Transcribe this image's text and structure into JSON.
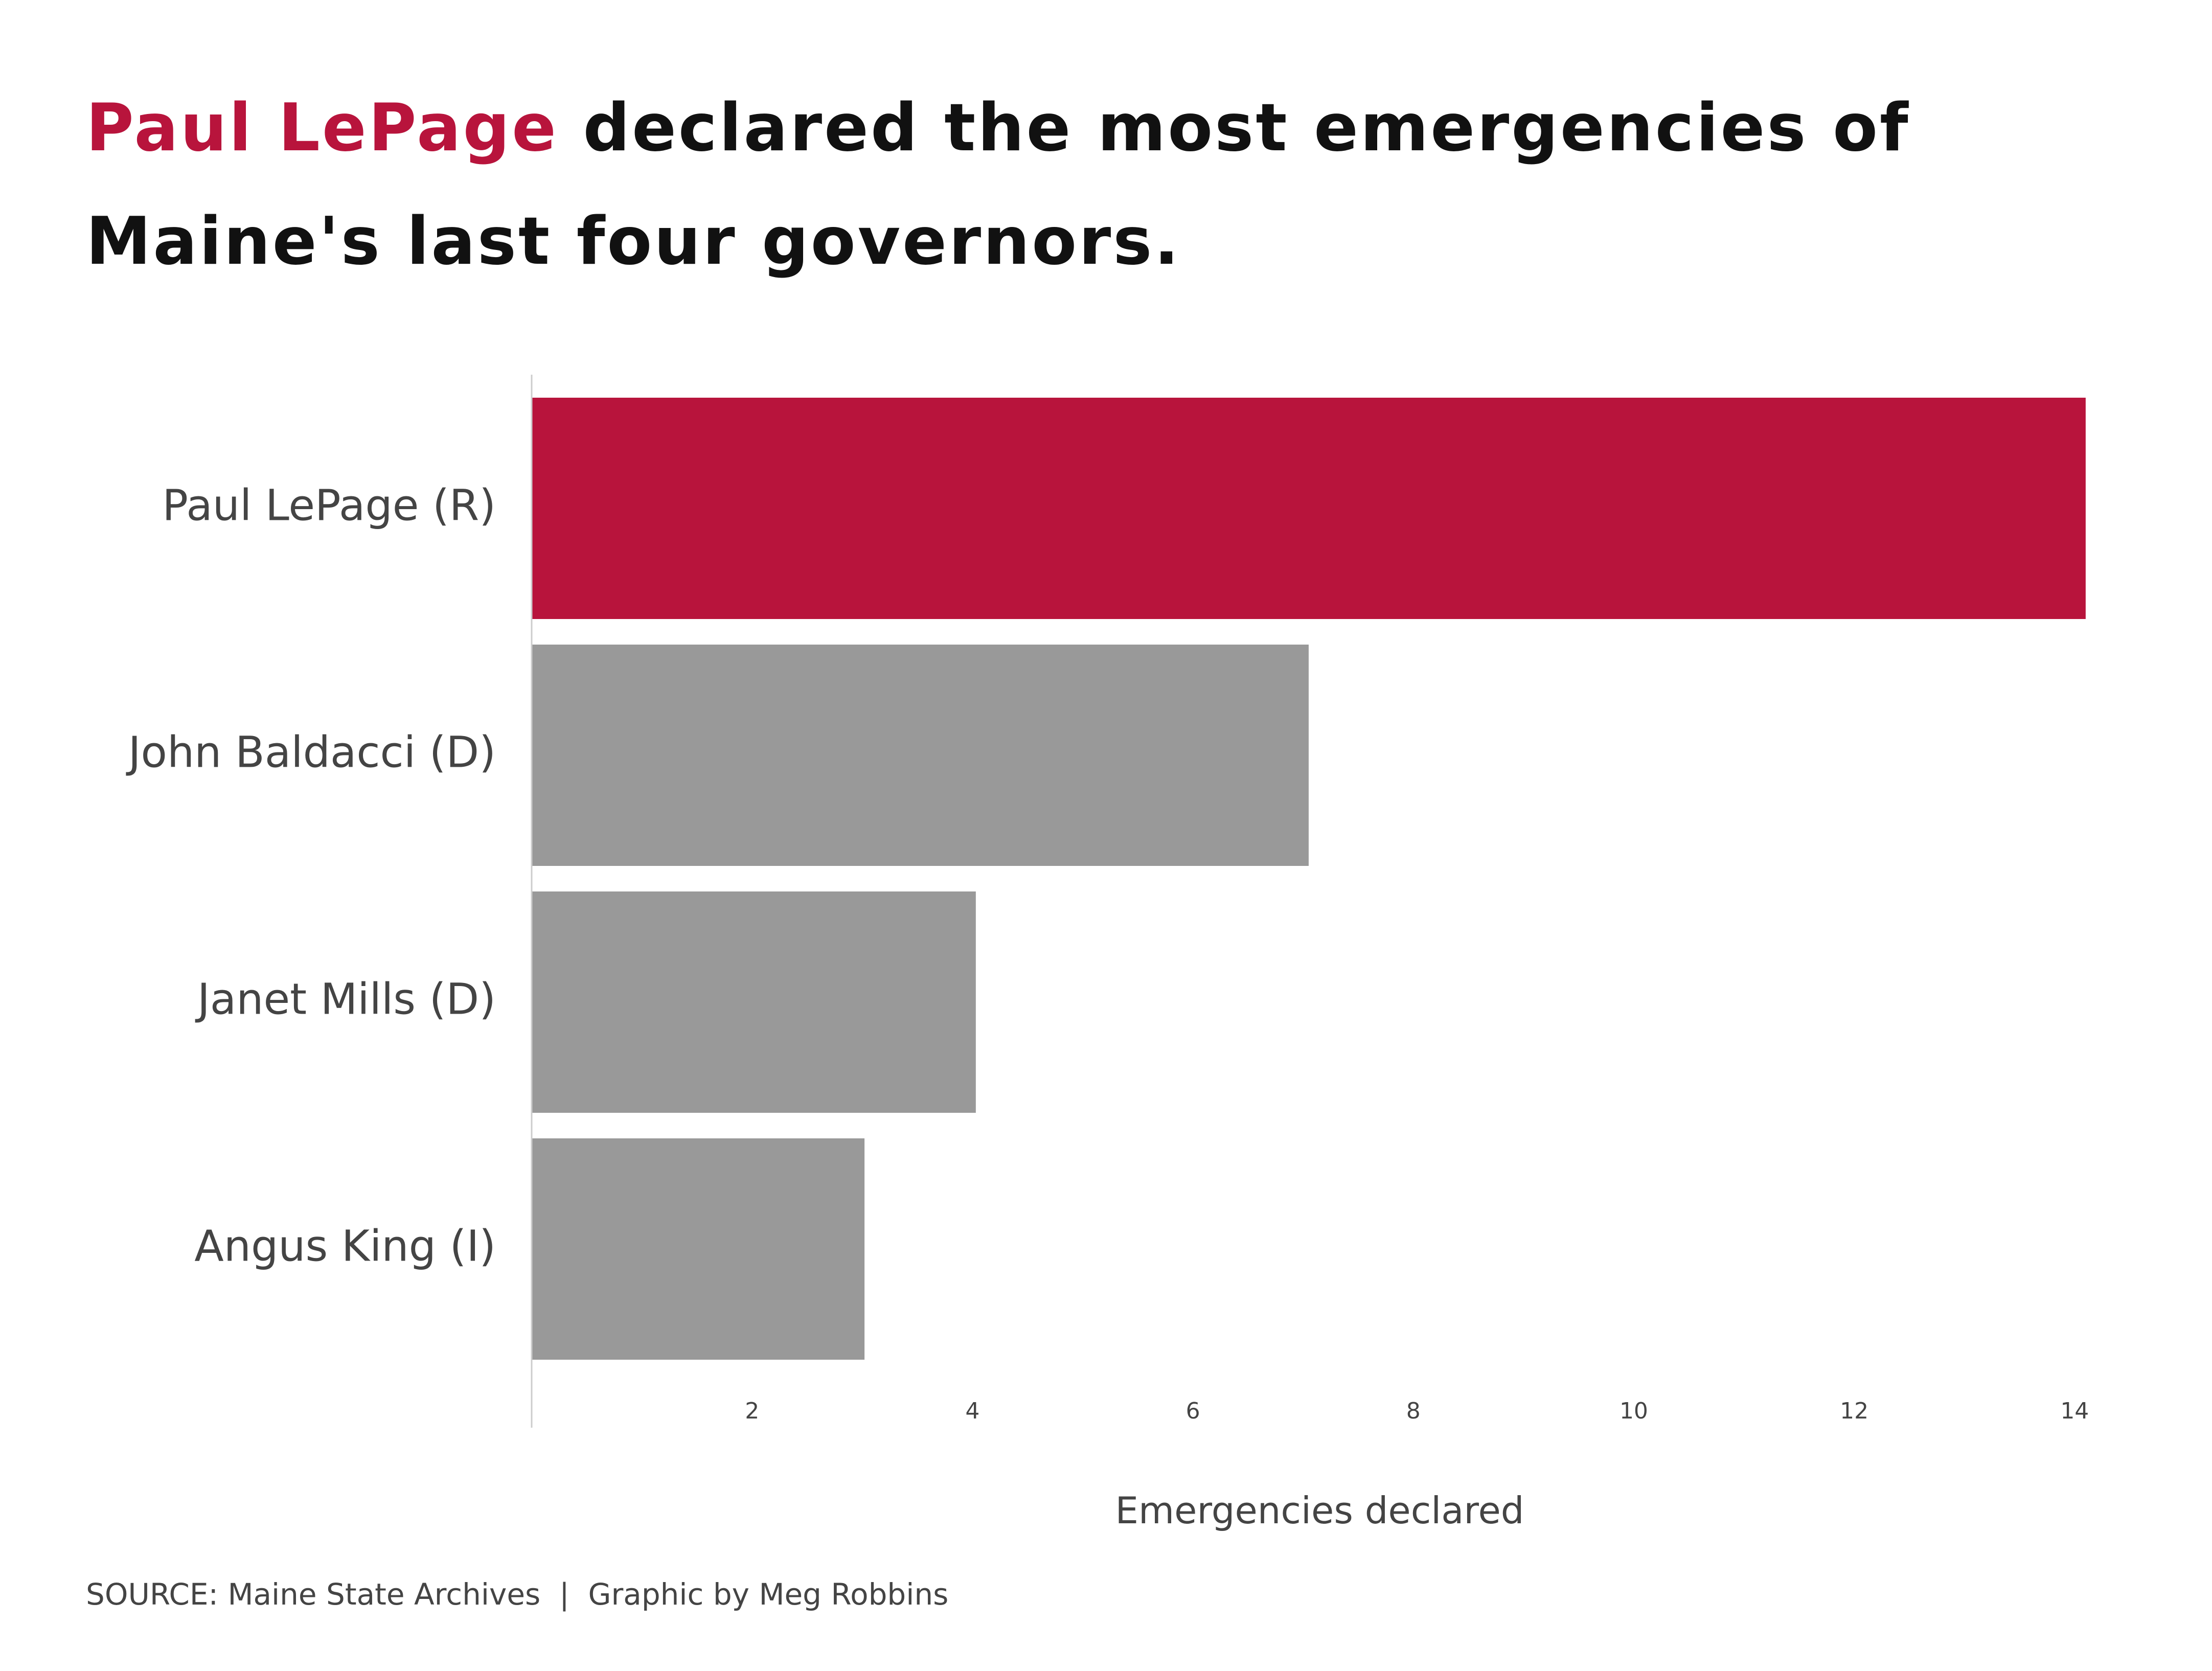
{
  "title": {
    "highlight": "Paul LePage",
    "rest": " declared the most emergencies of Maine's last four governors."
  },
  "colors": {
    "highlight": "#b8143c",
    "bar_default": "#999999",
    "axis_line": "#cccccc",
    "text": "#444444"
  },
  "chart_data": {
    "type": "bar",
    "orientation": "horizontal",
    "categories": [
      "Paul LePage (R)",
      "John Baldacci (D)",
      "Janet Mills (D)",
      "Angus King (I)"
    ],
    "values": [
      14.1,
      7.05,
      4.03,
      3.02
    ],
    "highlight_index": 0,
    "xlabel": "Emergencies declared",
    "ylabel": "",
    "xlim": [
      0,
      14.3
    ],
    "xticks": [
      2,
      4,
      6,
      8,
      10,
      12,
      14
    ],
    "grid": false,
    "legend": "none"
  },
  "source": "SOURCE: Maine State Archives  |  Graphic by Meg Robbins"
}
